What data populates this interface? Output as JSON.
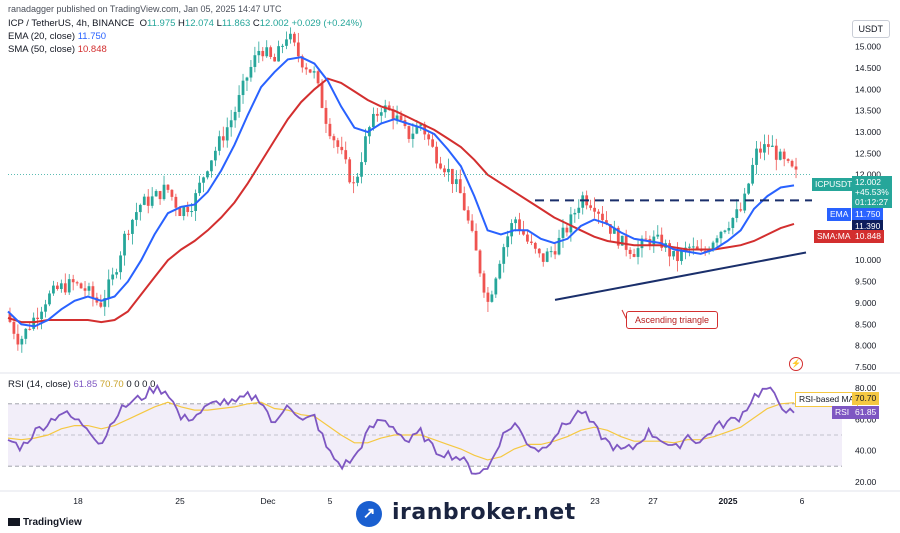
{
  "header": {
    "publisher_line": "ranadagger published on TradingView.com, Jan 05, 2025 14:47 UTC",
    "symbol_line": "ICP / TetherUS, 4h, BINANCE",
    "ohlc": {
      "O": "11.975",
      "H": "12.074",
      "L": "11.863",
      "C": "12.002",
      "change": "+0.029 (+0.24%)"
    },
    "ema_label": "EMA (20, close)",
    "ema_value": "11.750",
    "sma_label": "SMA (50, close)",
    "sma_value": "10.848",
    "rsi_label": "RSI (14, close)",
    "rsi_value": "61.85",
    "rsi_ma_value": "70.70",
    "rsi_zeros": "0 0 0 0"
  },
  "currency": "USDT",
  "price_tags": {
    "symbol": "ICPUSDT",
    "price": "12.002",
    "change_pct": "+45.53%",
    "countdown": "01:12:27",
    "ema_tag": "EMA",
    "ema_price": "11.750",
    "ema_price2": "11.390",
    "sma_tag": "SMA:MA",
    "sma_price": "10.848",
    "rsi_ma_tag": "RSI-based MA",
    "rsi_ma_price": "70.70",
    "rsi_tag": "RSI",
    "rsi_price": "61.85"
  },
  "annotation": "Ascending triangle",
  "watermark": "iranbroker.net",
  "tv_brand": "TradingView",
  "colors": {
    "up": "#26a69a",
    "down": "#ef5350",
    "ema": "#2962ff",
    "sma": "#d32f2f",
    "rsi": "#7e57c2",
    "rsi_ma": "#f5c842",
    "band": "#ede7f6",
    "trendline": "#1a2f6b"
  },
  "chart_data": {
    "type": "candlestick",
    "price_axis": {
      "ticks": [
        7.5,
        8.0,
        8.5,
        9.0,
        9.5,
        10.0,
        10.5,
        11.0,
        11.5,
        12.0,
        12.5,
        13.0,
        13.5,
        14.0,
        14.5,
        15.0
      ],
      "labels": [
        "7.500",
        "8.000",
        "8.500",
        "9.000",
        "9.500",
        "10.000",
        "10.500",
        "11.000",
        "11.500",
        "12.000",
        "12.500",
        "13.000",
        "13.500",
        "14.000",
        "14.500",
        "15.000"
      ]
    },
    "rsi_axis": {
      "ticks": [
        20,
        40,
        60,
        80
      ],
      "labels": [
        "20.00",
        "40.00",
        "60.00",
        "80.00"
      ],
      "band": [
        30,
        70
      ]
    },
    "x_ticks": [
      "18",
      "25",
      "Dec",
      "5",
      "23",
      "27",
      "2025",
      "6"
    ],
    "last_price": 12.002,
    "resistance": 11.4,
    "support_line": [
      9.07,
      10.18
    ],
    "price_path": [
      8.75,
      8.1,
      8.6,
      9.1,
      9.35,
      9.45,
      9.3,
      8.95,
      9.6,
      10.7,
      11.3,
      11.45,
      11.7,
      11.15,
      11.35,
      12.2,
      12.8,
      13.4,
      14.3,
      15.0,
      14.6,
      15.3,
      14.7,
      14.35,
      13.2,
      12.5,
      11.7,
      13.0,
      13.6,
      13.4,
      12.9,
      13.2,
      12.5,
      12.1,
      11.5,
      10.3,
      9.0,
      10.2,
      11.0,
      10.4,
      10.0,
      10.3,
      10.8,
      11.5,
      11.3,
      10.8,
      10.4,
      10.2,
      10.5,
      10.4,
      10.0,
      10.3,
      10.1,
      10.6,
      10.9,
      11.2,
      12.5,
      12.7,
      12.3,
      12.0
    ],
    "ema_path": [
      8.8,
      8.5,
      8.45,
      8.6,
      8.85,
      9.05,
      9.15,
      9.05,
      9.15,
      9.5,
      10.0,
      10.6,
      11.1,
      11.25,
      11.3,
      11.6,
      12.1,
      12.7,
      13.4,
      14.05,
      14.4,
      14.7,
      14.75,
      14.6,
      14.2,
      13.6,
      13.1,
      13.0,
      13.2,
      13.3,
      13.2,
      13.1,
      12.95,
      12.6,
      12.2,
      11.5,
      10.7,
      10.6,
      10.7,
      10.7,
      10.5,
      10.4,
      10.5,
      10.8,
      10.95,
      10.85,
      10.65,
      10.5,
      10.45,
      10.4,
      10.25,
      10.2,
      10.15,
      10.25,
      10.45,
      10.7,
      11.2,
      11.5,
      11.7,
      11.75
    ],
    "sma_path": [
      8.65,
      8.55,
      8.55,
      8.6,
      8.6,
      8.6,
      8.6,
      8.55,
      8.6,
      8.8,
      9.2,
      9.6,
      10.0,
      10.25,
      10.45,
      10.7,
      11.0,
      11.35,
      11.8,
      12.3,
      12.8,
      13.3,
      13.7,
      14.0,
      14.25,
      14.15,
      13.95,
      13.75,
      13.6,
      13.5,
      13.35,
      13.2,
      13.05,
      12.85,
      12.65,
      12.35,
      12.0,
      11.8,
      11.6,
      11.4,
      11.2,
      11.0,
      10.85,
      10.7,
      10.55,
      10.45,
      10.4,
      10.35,
      10.35,
      10.35,
      10.3,
      10.25,
      10.25,
      10.25,
      10.3,
      10.35,
      10.45,
      10.6,
      10.75,
      10.848
    ],
    "rsi_path": [
      47,
      42,
      52,
      58,
      65,
      60,
      55,
      44,
      62,
      70,
      74,
      80,
      78,
      60,
      62,
      68,
      72,
      70,
      75,
      73,
      55,
      72,
      58,
      62,
      40,
      30,
      35,
      52,
      60,
      55,
      45,
      52,
      40,
      38,
      35,
      26,
      28,
      48,
      58,
      45,
      40,
      50,
      58,
      66,
      55,
      45,
      40,
      42,
      52,
      48,
      40,
      50,
      45,
      55,
      58,
      62,
      75,
      80,
      70,
      62
    ],
    "rsi_ma_path": [
      48,
      47,
      48,
      50,
      54,
      56,
      56,
      54,
      56,
      60,
      64,
      68,
      71,
      68,
      66,
      66,
      67,
      68,
      70,
      71,
      67,
      66,
      63,
      62,
      56,
      50,
      45,
      45,
      48,
      50,
      50,
      50,
      47,
      44,
      41,
      37,
      34,
      36,
      41,
      44,
      44,
      46,
      49,
      53,
      55,
      53,
      49,
      46,
      46,
      46,
      45,
      47,
      47,
      49,
      52,
      55,
      61,
      67,
      70,
      70.7
    ]
  }
}
